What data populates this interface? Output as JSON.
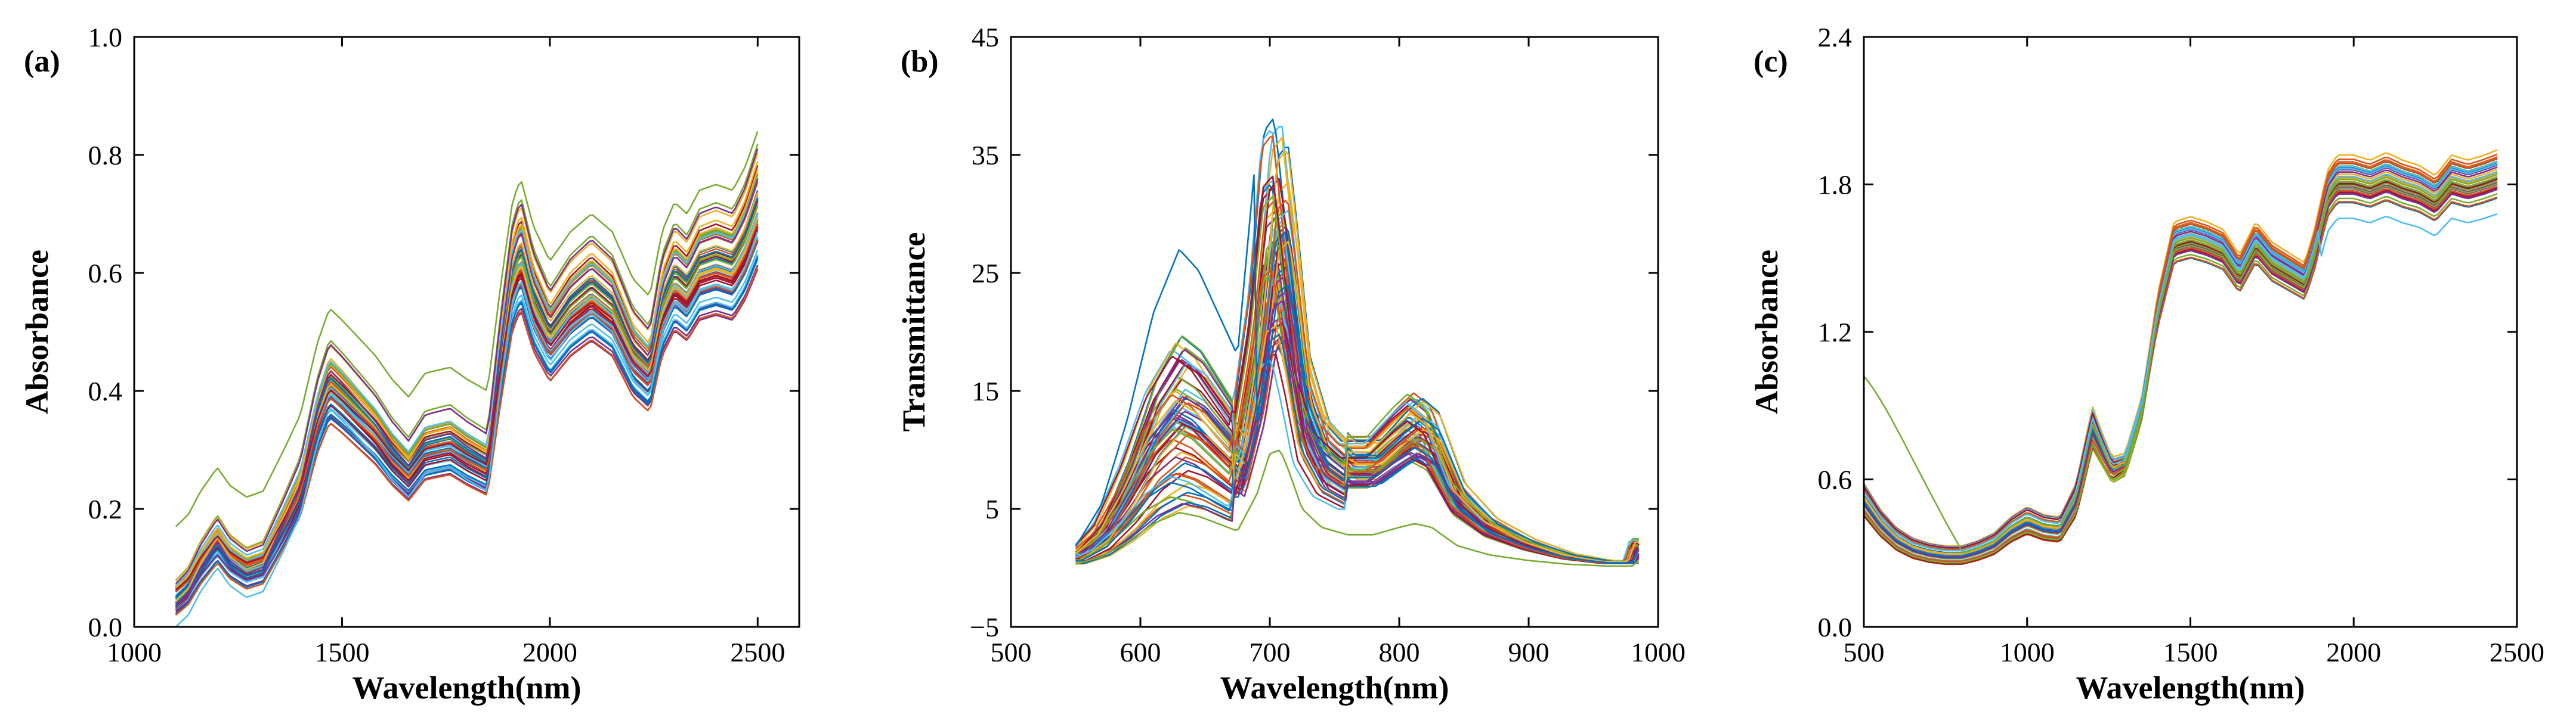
{
  "palette": [
    "#0072BD",
    "#D95319",
    "#EDB120",
    "#7E2F8E",
    "#77AC30",
    "#4DBEEE",
    "#A2142F"
  ],
  "chart_data": [
    {
      "type": "line",
      "panel_label": "(a)",
      "xlabel": "Wavelength(nm)",
      "ylabel": "Absorbance",
      "xlim": [
        1000,
        2600
      ],
      "ylim": [
        0.0,
        1.0
      ],
      "xticks": [
        1000,
        1500,
        2000,
        2500
      ],
      "xtick_labels": [
        "1000",
        "1500",
        "2000",
        "2500"
      ],
      "yticks": [
        0.0,
        0.2,
        0.4,
        0.6,
        0.8,
        1.0
      ],
      "ytick_labels": [
        "0.0",
        "0.2",
        "0.4",
        "0.6",
        "0.8",
        "1.0"
      ],
      "grid": false,
      "legend": "none",
      "n_series": 60,
      "mean_profile": {
        "x": [
          1100,
          1130,
          1160,
          1200,
          1230,
          1270,
          1310,
          1360,
          1400,
          1440,
          1470,
          1500,
          1540,
          1580,
          1620,
          1660,
          1700,
          1760,
          1800,
          1850,
          1880,
          1910,
          1930,
          1960,
          2000,
          2050,
          2100,
          2150,
          2200,
          2240,
          2270,
          2300,
          2330,
          2360,
          2400,
          2440,
          2470,
          2500
        ],
        "y": [
          0.05,
          0.07,
          0.11,
          0.15,
          0.12,
          0.1,
          0.11,
          0.18,
          0.24,
          0.36,
          0.42,
          0.4,
          0.37,
          0.34,
          0.3,
          0.27,
          0.31,
          0.32,
          0.3,
          0.28,
          0.45,
          0.6,
          0.64,
          0.56,
          0.5,
          0.55,
          0.58,
          0.55,
          0.47,
          0.44,
          0.55,
          0.6,
          0.58,
          0.62,
          0.63,
          0.62,
          0.66,
          0.72
        ]
      },
      "highlight_series": [
        {
          "label": "upper outlier",
          "color": "#77AC30",
          "offset": 0.12
        },
        {
          "label": "lower outlier",
          "color": "#4DBEEE",
          "offset": -0.05
        }
      ]
    },
    {
      "type": "line",
      "panel_label": "(b)",
      "xlabel": "Wavelength(nm)",
      "ylabel": "Transmittance",
      "xlim": [
        500,
        1000
      ],
      "ylim": [
        -5,
        45
      ],
      "xticks": [
        500,
        600,
        700,
        800,
        900,
        1000
      ],
      "xtick_labels": [
        "500",
        "600",
        "700",
        "800",
        "900",
        "1000"
      ],
      "yticks": [
        -5,
        5,
        15,
        25,
        35,
        45
      ],
      "ytick_labels": [
        "−5",
        "5",
        "15",
        "25",
        "35",
        "45"
      ],
      "grid": false,
      "legend": "none",
      "n_series": 60,
      "mean_profile": {
        "x": [
          550,
          570,
          590,
          610,
          630,
          645,
          660,
          675,
          690,
          700,
          708,
          715,
          725,
          740,
          760,
          780,
          800,
          812,
          825,
          845,
          870,
          900,
          930,
          960,
          980,
          985
        ],
        "y": [
          1,
          3,
          7,
          12,
          15,
          14,
          12,
          10,
          20,
          31,
          32,
          26,
          16,
          11,
          9,
          9,
          11,
          12,
          11,
          6,
          3.5,
          2,
          1,
          0.5,
          0.5,
          2
        ]
      },
      "highlight_series": [
        {
          "label": "early-peak outlier",
          "color": "#0072BD",
          "peak_nm": 640,
          "peak": 27
        },
        {
          "label": "low outlier",
          "color": "#77AC30",
          "peak_nm": 705,
          "peak": 10
        }
      ]
    },
    {
      "type": "line",
      "panel_label": "(c)",
      "xlabel": "Wavelength(nm)",
      "ylabel": "Absorbance",
      "xlim": [
        500,
        2500
      ],
      "ylim": [
        0.0,
        2.4
      ],
      "xticks": [
        500,
        1000,
        1500,
        2000,
        2500
      ],
      "xtick_labels": [
        "500",
        "1000",
        "1500",
        "2000",
        "2500"
      ],
      "yticks": [
        0.0,
        0.6,
        1.2,
        1.8,
        2.4
      ],
      "ytick_labels": [
        "0.0",
        "0.6",
        "1.2",
        "1.8",
        "2.4"
      ],
      "grid": false,
      "legend": "none",
      "n_series": 40,
      "mean_profile": {
        "x": [
          500,
          550,
          600,
          650,
          700,
          750,
          800,
          850,
          900,
          950,
          1000,
          1050,
          1100,
          1150,
          1200,
          1230,
          1260,
          1300,
          1350,
          1400,
          1450,
          1500,
          1550,
          1600,
          1650,
          1700,
          1750,
          1800,
          1850,
          1880,
          1920,
          1950,
          2000,
          2050,
          2100,
          2150,
          2200,
          2250,
          2300,
          2350,
          2400,
          2440
        ],
        "y": [
          0.55,
          0.45,
          0.38,
          0.34,
          0.32,
          0.31,
          0.31,
          0.33,
          0.36,
          0.42,
          0.46,
          0.43,
          0.42,
          0.55,
          0.85,
          0.75,
          0.66,
          0.68,
          0.9,
          1.3,
          1.58,
          1.6,
          1.58,
          1.55,
          1.45,
          1.58,
          1.5,
          1.46,
          1.42,
          1.55,
          1.78,
          1.84,
          1.84,
          1.82,
          1.85,
          1.82,
          1.8,
          1.76,
          1.84,
          1.82,
          1.84,
          1.86
        ]
      },
      "highlight_series": [
        {
          "label": "high-start outlier",
          "color": "#77AC30",
          "start": 1.02
        },
        {
          "label": "low-end outlier",
          "color": "#4DBEEE",
          "end": 1.68
        }
      ]
    }
  ]
}
